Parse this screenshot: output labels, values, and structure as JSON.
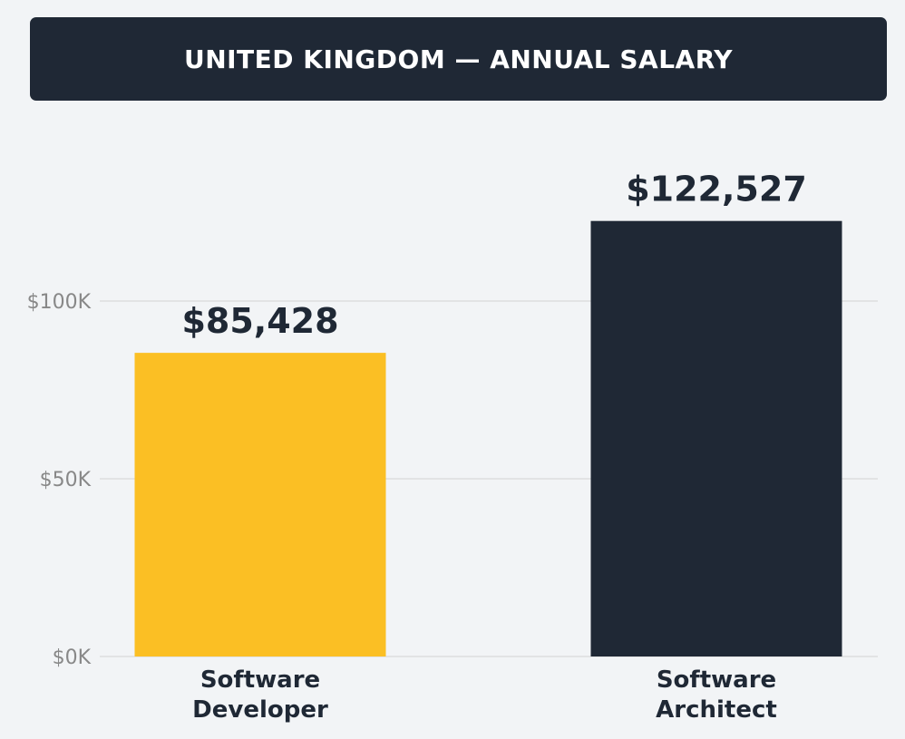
{
  "chart_data": {
    "type": "bar",
    "title": "UNITED KINGDOM — ANNUAL SALARY",
    "categories": [
      [
        "Software",
        "Developer"
      ],
      [
        "Software",
        "Architect"
      ]
    ],
    "values": [
      85428,
      122527
    ],
    "value_labels": [
      "$85,428",
      "$122,527"
    ],
    "colors": [
      "#fbbf24",
      "#1f2835"
    ],
    "ylim": [
      0,
      150000
    ],
    "yticks": [
      {
        "value": 0,
        "label": "$0K"
      },
      {
        "value": 50000,
        "label": "$50K"
      },
      {
        "value": 100000,
        "label": "$100K"
      }
    ],
    "grid": true,
    "xlabel": "",
    "ylabel": ""
  },
  "colors": {
    "background": "#f2f4f6",
    "title_bg": "#1f2835",
    "title_text": "#ffffff",
    "axis_text": "#888888",
    "label_text": "#1f2835",
    "grid": "#dddddd"
  }
}
